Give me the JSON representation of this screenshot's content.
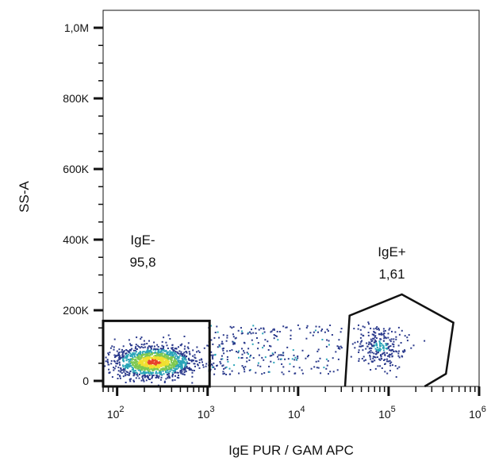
{
  "chart_data": {
    "type": "scatter",
    "subtype": "flow-cytometry-density-plot",
    "xlabel": "IgE PUR / GAM APC",
    "ylabel": "SS-A",
    "x_scale": "log",
    "xlim": [
      70,
      1000000
    ],
    "y_scale": "linear",
    "ylim": [
      0,
      1050000
    ],
    "x_ticks": [
      {
        "value": 100,
        "base": "10",
        "exp": "2"
      },
      {
        "value": 1000,
        "base": "10",
        "exp": "3"
      },
      {
        "value": 10000,
        "base": "10",
        "exp": "4"
      },
      {
        "value": 100000,
        "base": "10",
        "exp": "5"
      },
      {
        "value": 1000000,
        "base": "10",
        "exp": "6"
      }
    ],
    "y_ticks": [
      {
        "value": 0,
        "label": "0"
      },
      {
        "value": 200000,
        "label": "200K"
      },
      {
        "value": 400000,
        "label": "400K"
      },
      {
        "value": 600000,
        "label": "600K"
      },
      {
        "value": 800000,
        "label": "800K"
      },
      {
        "value": 1000000,
        "label": "1,0M"
      }
    ],
    "grid": false,
    "populations": [
      {
        "x_range": [
          80,
          900
        ],
        "y_range": [
          15000,
          120000
        ],
        "density": "high",
        "x_center": 250,
        "y_center": 55000
      },
      {
        "x_range": [
          1000,
          30000
        ],
        "y_range": [
          20000,
          160000
        ],
        "density": "low"
      },
      {
        "x_range": [
          40000,
          150000
        ],
        "y_range": [
          40000,
          150000
        ],
        "density": "medium",
        "x_center": 80000,
        "y_center": 100000
      }
    ],
    "gates": [
      {
        "name": "IgE-",
        "value": "95,8",
        "shape": "rectangle",
        "vertices": [
          [
            70,
            0
          ],
          [
            1050,
            0
          ],
          [
            1050,
            170000
          ],
          [
            70,
            170000
          ]
        ]
      },
      {
        "name": "IgE+",
        "value": "1,61",
        "shape": "polygon",
        "vertices": [
          [
            33000,
            0
          ],
          [
            37000,
            185000
          ],
          [
            140000,
            245000
          ],
          [
            520000,
            165000
          ],
          [
            430000,
            20000
          ],
          [
            250000,
            0
          ]
        ]
      }
    ],
    "colors": {
      "axis": "#111111",
      "gate": "#111111",
      "density_low": "#2b3a8c",
      "density_mid": "#2aa5b8",
      "density_midhigh": "#7ec850",
      "density_high": "#f0e030",
      "density_peak": "#e8402a"
    }
  }
}
